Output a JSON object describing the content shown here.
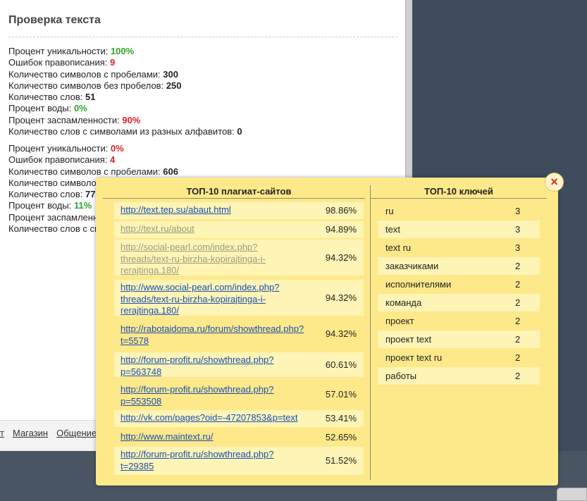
{
  "title": "Проверка текста",
  "results1": [
    {
      "label": "Процент уникальности:",
      "value": "100%",
      "color": "green"
    },
    {
      "label": "Ошибок правописания:",
      "value": "9",
      "color": "red"
    },
    {
      "label": "Количество символов с пробелами:",
      "value": "300",
      "color": "dark"
    },
    {
      "label": "Количество символов без пробелов:",
      "value": "250",
      "color": "dark"
    },
    {
      "label": "Количество слов:",
      "value": "51",
      "color": "dark"
    },
    {
      "label": "Процент воды:",
      "value": "0%",
      "color": "green"
    },
    {
      "label": "Процент заспамленности:",
      "value": "90%",
      "color": "red"
    },
    {
      "label": "Количество слов с символами из разных алфавитов:",
      "value": "0",
      "color": "dark"
    }
  ],
  "results2": [
    {
      "label": "Процент уникальности:",
      "value": "0%",
      "color": "red"
    },
    {
      "label": "Ошибок правописания:",
      "value": "4",
      "color": "red"
    },
    {
      "label": "Количество символов с пробелами:",
      "value": "606",
      "color": "dark"
    },
    {
      "label": "Количество символов",
      "value": "",
      "color": "dark"
    },
    {
      "label": "Количество слов:",
      "value": "77",
      "color": "dark"
    },
    {
      "label": "Процент воды:",
      "value": "11%",
      "color": "green"
    },
    {
      "label": "Процент заспамленно",
      "value": "",
      "color": "dark"
    },
    {
      "label": "Количество слов с си",
      "value": "",
      "color": "dark"
    }
  ],
  "footer": {
    "link1": "т",
    "link2": "Магазин",
    "link3": "Общение"
  },
  "popup": {
    "close_icon": "×",
    "plagiarism_header": "ТОП-10 плагиат-сайтов",
    "keys_header": "ТОП-10 ключей",
    "sites": [
      {
        "url": "http://text.tep.su/abaut.html",
        "percent": "98.86%"
      },
      {
        "url": "http://text.ru/about",
        "percent": "94.89%"
      },
      {
        "url": "http://social-pearl.com/index.php?threads/text-ru-birzha-kopirajtinga-i-rerajtinga.180/",
        "percent": "94.32%"
      },
      {
        "url": "http://www.social-pearl.com/index.php?threads/text-ru-birzha-kopirajtinga-i-rerajtinga.180/",
        "percent": "94.32%"
      },
      {
        "url": "http://rabotaidoma.ru/forum/showthread.php?t=5578",
        "percent": "94.32%"
      },
      {
        "url": "http://forum-profit.ru/showthread.php?p=563748",
        "percent": "60.61%"
      },
      {
        "url": "http://forum-profit.ru/showthread.php?p=553508",
        "percent": "57.01%"
      },
      {
        "url": "http://vk.com/pages?oid=-47207853&p=text",
        "percent": "53.41%"
      },
      {
        "url": "http://www.maintext.ru/",
        "percent": "52.65%"
      },
      {
        "url": "http://forum-profit.ru/showthread.php?t=29385",
        "percent": "51.52%"
      }
    ],
    "keys": [
      {
        "word": "ru",
        "count": "3"
      },
      {
        "word": "text",
        "count": "3"
      },
      {
        "word": "text ru",
        "count": "3"
      },
      {
        "word": "заказчиками",
        "count": "2"
      },
      {
        "word": "исполнителями",
        "count": "2"
      },
      {
        "word": "команда",
        "count": "2"
      },
      {
        "word": "проект",
        "count": "2"
      },
      {
        "word": "проект text",
        "count": "2"
      },
      {
        "word": "проект text ru",
        "count": "2"
      },
      {
        "word": "работы",
        "count": "2"
      }
    ]
  }
}
